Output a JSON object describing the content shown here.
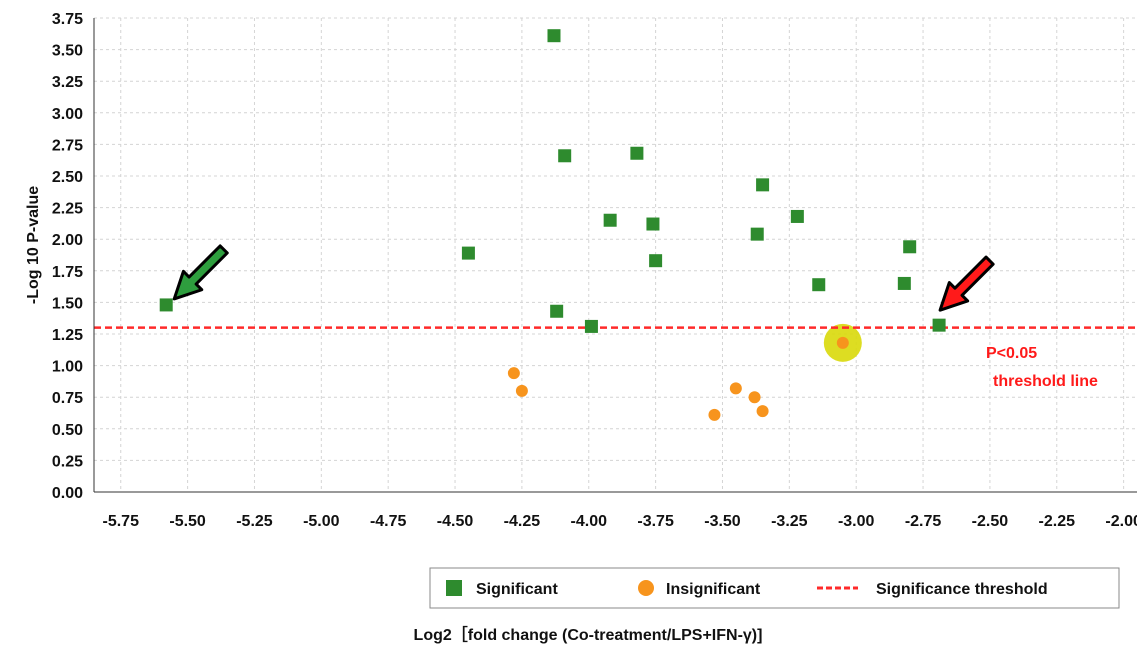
{
  "chart_data": {
    "type": "scatter",
    "xlabel": "Log2［fold change (Co-treatment/LPS+IFN-γ)]",
    "ylabel": "-Log 10 P-value",
    "xlim": [
      -5.85,
      -1.95
    ],
    "ylim": [
      0,
      3.75
    ],
    "x_ticks": [
      "-5.75",
      "-5.50",
      "-5.25",
      "-5.00",
      "-4.75",
      "-4.50",
      "-4.25",
      "-4.00",
      "-3.75",
      "-3.50",
      "-3.25",
      "-3.00",
      "-2.75",
      "-2.50",
      "-2.25",
      "-2.00"
    ],
    "y_ticks": [
      "0.00",
      "0.25",
      "0.50",
      "0.75",
      "1.00",
      "1.25",
      "1.50",
      "1.75",
      "2.00",
      "2.25",
      "2.50",
      "2.75",
      "3.00",
      "3.25",
      "3.50",
      "3.75"
    ],
    "grid": true,
    "threshold": {
      "name": "Significance threshold",
      "y": 1.3,
      "color": "#ff2a2a"
    },
    "series": [
      {
        "name": "Significant",
        "marker": "square",
        "color": "#2e8b2e",
        "points": [
          {
            "x": -5.58,
            "y": 1.48
          },
          {
            "x": -4.45,
            "y": 1.89
          },
          {
            "x": -4.13,
            "y": 3.61
          },
          {
            "x": -4.09,
            "y": 2.66
          },
          {
            "x": -4.12,
            "y": 1.43
          },
          {
            "x": -3.99,
            "y": 1.31
          },
          {
            "x": -3.92,
            "y": 2.15
          },
          {
            "x": -3.82,
            "y": 2.68
          },
          {
            "x": -3.76,
            "y": 2.12
          },
          {
            "x": -3.75,
            "y": 1.83
          },
          {
            "x": -3.37,
            "y": 2.04
          },
          {
            "x": -3.35,
            "y": 2.43
          },
          {
            "x": -3.22,
            "y": 2.18
          },
          {
            "x": -3.14,
            "y": 1.64
          },
          {
            "x": -2.8,
            "y": 1.94
          },
          {
            "x": -2.82,
            "y": 1.65
          },
          {
            "x": -2.69,
            "y": 1.32
          }
        ]
      },
      {
        "name": "Insignificant",
        "marker": "circle",
        "color": "#f7941d",
        "points": [
          {
            "x": -4.28,
            "y": 0.94
          },
          {
            "x": -4.25,
            "y": 0.8
          },
          {
            "x": -3.53,
            "y": 0.61
          },
          {
            "x": -3.45,
            "y": 0.82
          },
          {
            "x": -3.38,
            "y": 0.75
          },
          {
            "x": -3.35,
            "y": 0.64
          },
          {
            "x": -3.05,
            "y": 1.18
          }
        ]
      }
    ],
    "highlight": {
      "x": -3.05,
      "y": 1.18,
      "color": "#d9d90a"
    },
    "annotations": [
      {
        "text": "P<0.05",
        "color": "#ff1a1a"
      },
      {
        "text": "threshold line",
        "color": "#ff1a1a"
      }
    ],
    "arrows": [
      {
        "color": "#2e9e3e",
        "target": {
          "x": -5.58,
          "y": 1.48
        }
      },
      {
        "color": "#ff1a1a",
        "target": {
          "x": -2.69,
          "y": 1.32
        }
      }
    ],
    "legend": {
      "position": "bottom-right",
      "items": [
        {
          "label": "Significant",
          "marker": "square",
          "color": "#2e8b2e"
        },
        {
          "label": "Insignificant",
          "marker": "circle",
          "color": "#f7941d"
        },
        {
          "label": "Significance threshold",
          "marker": "dashed-line",
          "color": "#ff2a2a"
        }
      ]
    }
  }
}
